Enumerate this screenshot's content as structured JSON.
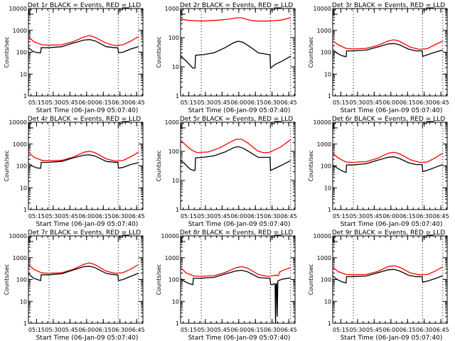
{
  "chart_data": [
    {
      "type": "line",
      "title": "Det 1r BLACK = Events, RED = LLD",
      "ylabel": "Counts/sec",
      "xlabel": "Start Time (06-Jan-09 05:07:40)",
      "yscale": "log",
      "ylim": [
        1,
        10000
      ],
      "yticks": [
        "1",
        "10",
        "100",
        "1000",
        "10000"
      ],
      "xticks": [
        "05:15",
        "05:30",
        "05:45",
        "06:00",
        "06:15",
        "06:30",
        "06:45"
      ],
      "xlim_minutes": [
        0,
        103
      ],
      "vlines_minutes": [
        18.6,
        80.8,
        99
      ],
      "series": [
        {
          "name": "LLD",
          "color": "#ff0000",
          "x": [
            0,
            5,
            12,
            18,
            30,
            40,
            50,
            55,
            60,
            70,
            78,
            85,
            92,
            99
          ],
          "y": [
            500,
            300,
            220,
            210,
            220,
            300,
            500,
            580,
            480,
            260,
            200,
            220,
            320,
            520
          ]
        },
        {
          "name": "Events",
          "color": "#000000",
          "x": [
            0,
            4,
            8,
            11,
            11.5,
            18,
            30,
            40,
            50,
            55,
            60,
            70,
            78,
            80.5,
            81,
            85,
            92,
            99
          ],
          "y": [
            160,
            110,
            95,
            95,
            160,
            160,
            180,
            260,
            360,
            380,
            330,
            180,
            160,
            160,
            95,
            100,
            140,
            180
          ]
        }
      ]
    },
    {
      "type": "line",
      "title": "Det 2r BLACK = Events, RED = LLD",
      "ylabel": "Counts/sec",
      "xlabel": "Start Time (06-Jan-09 05:07:40)",
      "yscale": "log",
      "ylim": [
        1,
        1000
      ],
      "yticks": [
        "1",
        "10",
        "100",
        "1000"
      ],
      "xticks": [
        "05:15",
        "05:30",
        "05:45",
        "06:00",
        "06:15",
        "06:30",
        "06:45"
      ],
      "xlim_minutes": [
        0,
        103
      ],
      "vlines_minutes": [
        18.6,
        80.8,
        99
      ],
      "series": [
        {
          "name": "LLD",
          "color": "#ff0000",
          "x": [
            0,
            5,
            12,
            20,
            35,
            45,
            50,
            55,
            60,
            65,
            70,
            80,
            90,
            99
          ],
          "y": [
            450,
            400,
            380,
            370,
            400,
            440,
            480,
            480,
            420,
            380,
            370,
            370,
            400,
            480
          ]
        },
        {
          "name": "Events",
          "color": "#000000",
          "x": [
            0,
            2,
            5,
            8,
            11,
            13,
            13.5,
            20,
            30,
            40,
            48,
            52,
            56,
            62,
            70,
            80,
            80.5,
            81,
            85,
            92,
            99
          ],
          "y": [
            25,
            20,
            16,
            12,
            9,
            9,
            25,
            26,
            30,
            45,
            68,
            75,
            70,
            50,
            30,
            26,
            26,
            9,
            12,
            16,
            23
          ]
        }
      ]
    },
    {
      "type": "line",
      "title": "Det 3r BLACK = Events, RED = LLD",
      "ylabel": "Counts/sec",
      "xlabel": "Start Time (06-Jan-09 05:07:40)",
      "yscale": "log",
      "ylim": [
        1,
        10000
      ],
      "yticks": [
        "1",
        "10",
        "100",
        "1000",
        "10000"
      ],
      "xticks": [
        "05:15",
        "05:30",
        "05:45",
        "06:00",
        "06:15",
        "06:30",
        "06:45"
      ],
      "xlim_minutes": [
        0,
        103
      ],
      "vlines_minutes": [
        18.6,
        80.8,
        99
      ],
      "series": [
        {
          "name": "LLD",
          "color": "#ff0000",
          "x": [
            0,
            5,
            12,
            18,
            30,
            40,
            50,
            55,
            60,
            70,
            78,
            85,
            92,
            99
          ],
          "y": [
            330,
            220,
            150,
            140,
            150,
            200,
            330,
            370,
            320,
            170,
            135,
            145,
            220,
            320
          ]
        },
        {
          "name": "Events",
          "color": "#000000",
          "x": [
            0,
            4,
            8,
            12,
            12.5,
            18,
            30,
            40,
            50,
            55,
            60,
            68,
            75,
            80.5,
            81,
            85,
            92,
            99
          ],
          "y": [
            130,
            90,
            70,
            62,
            115,
            115,
            125,
            170,
            240,
            250,
            220,
            140,
            115,
            115,
            65,
            75,
            100,
            125
          ]
        }
      ]
    },
    {
      "type": "line",
      "title": "Det 4r BLACK = Events, RED = LLD",
      "ylabel": "Counts/sec",
      "xlabel": "Start Time (06-Jan-09 05:07:40)",
      "yscale": "log",
      "ylim": [
        1,
        10000
      ],
      "yticks": [
        "1",
        "10",
        "100",
        "1000",
        "10000"
      ],
      "xticks": [
        "05:15",
        "05:30",
        "05:45",
        "06:00",
        "06:15",
        "06:30",
        "06:45"
      ],
      "xlim_minutes": [
        0,
        103
      ],
      "vlines_minutes": [
        18.6,
        80.8,
        99
      ],
      "series": [
        {
          "name": "LLD",
          "color": "#ff0000",
          "x": [
            0,
            5,
            12,
            18,
            30,
            40,
            50,
            55,
            60,
            70,
            78,
            85,
            92,
            99
          ],
          "y": [
            420,
            250,
            180,
            170,
            180,
            250,
            420,
            470,
            400,
            210,
            165,
            175,
            260,
            420
          ]
        },
        {
          "name": "Events",
          "color": "#000000",
          "x": [
            0,
            4,
            8,
            11,
            11.5,
            18,
            30,
            40,
            50,
            55,
            60,
            70,
            78,
            80.5,
            81,
            85,
            92,
            99
          ],
          "y": [
            130,
            95,
            80,
            78,
            145,
            145,
            160,
            230,
            310,
            320,
            280,
            160,
            145,
            145,
            78,
            85,
            115,
            140
          ]
        }
      ]
    },
    {
      "type": "line",
      "title": "Det 5r BLACK = Events, RED = LLD",
      "ylabel": "Counts/sec",
      "xlabel": "Start Time (06-Jan-09 05:07:40)",
      "yscale": "log",
      "ylim": [
        1,
        1000
      ],
      "yticks": [
        "1",
        "10",
        "100",
        "1000"
      ],
      "xticks": [
        "05:15",
        "05:30",
        "05:45",
        "06:00",
        "06:15",
        "06:30",
        "06:45"
      ],
      "xlim_minutes": [
        0,
        103
      ],
      "vlines_minutes": [
        18.6,
        80.8,
        99
      ],
      "series": [
        {
          "name": "LLD",
          "color": "#ff0000",
          "x": [
            0,
            5,
            10,
            15,
            25,
            35,
            45,
            50,
            55,
            60,
            65,
            70,
            75,
            80,
            90,
            99
          ],
          "y": [
            240,
            160,
            110,
            90,
            95,
            130,
            210,
            260,
            260,
            200,
            140,
            100,
            90,
            92,
            140,
            250
          ]
        },
        {
          "name": "Events",
          "color": "#000000",
          "x": [
            0,
            3,
            6,
            9,
            12,
            13,
            13.5,
            20,
            30,
            40,
            48,
            52,
            56,
            62,
            70,
            80,
            80.5,
            81,
            85,
            92,
            99
          ],
          "y": [
            48,
            40,
            30,
            24,
            22,
            22,
            60,
            62,
            70,
            95,
            135,
            145,
            130,
            95,
            62,
            62,
            62,
            22,
            26,
            35,
            48
          ]
        }
      ]
    },
    {
      "type": "line",
      "title": "Det 6r BLACK = Events, RED = LLD",
      "ylabel": "Counts/sec",
      "xlabel": "Start Time (06-Jan-09 05:07:40)",
      "yscale": "log",
      "ylim": [
        1,
        10000
      ],
      "yticks": [
        "1",
        "10",
        "100",
        "1000",
        "10000"
      ],
      "xticks": [
        "05:15",
        "05:30",
        "05:45",
        "06:00",
        "06:15",
        "06:30",
        "06:45"
      ],
      "xlim_minutes": [
        0,
        103
      ],
      "vlines_minutes": [
        18.6,
        80.8,
        99
      ],
      "series": [
        {
          "name": "LLD",
          "color": "#ff0000",
          "x": [
            0,
            5,
            12,
            18,
            30,
            40,
            50,
            55,
            60,
            70,
            78,
            85,
            92,
            99
          ],
          "y": [
            380,
            230,
            150,
            145,
            155,
            220,
            380,
            420,
            360,
            190,
            145,
            150,
            230,
            380
          ]
        },
        {
          "name": "Events",
          "color": "#000000",
          "x": [
            0,
            4,
            8,
            12,
            12.5,
            18,
            30,
            40,
            50,
            55,
            60,
            68,
            75,
            80.5,
            81,
            85,
            92,
            99
          ],
          "y": [
            110,
            80,
            60,
            50,
            110,
            110,
            125,
            180,
            250,
            260,
            220,
            140,
            115,
            115,
            55,
            62,
            85,
            115
          ]
        }
      ]
    },
    {
      "type": "line",
      "title": "Det 7r BLACK = Events, RED = LLD",
      "ylabel": "Counts/sec",
      "xlabel": "Start Time (06-Jan-09 05:07:40)",
      "yscale": "log",
      "ylim": [
        1,
        10000
      ],
      "yticks": [
        "1",
        "10",
        "100",
        "1000",
        "10000"
      ],
      "xticks": [
        "05:15",
        "05:30",
        "05:45",
        "06:00",
        "06:15",
        "06:30",
        "06:45"
      ],
      "xlim_minutes": [
        0,
        103
      ],
      "vlines_minutes": [
        18.6,
        80.8,
        99
      ],
      "series": [
        {
          "name": "LLD",
          "color": "#ff0000",
          "x": [
            0,
            5,
            12,
            18,
            30,
            40,
            50,
            55,
            60,
            70,
            78,
            85,
            92,
            99
          ],
          "y": [
            480,
            290,
            200,
            195,
            205,
            290,
            500,
            580,
            480,
            240,
            195,
            205,
            300,
            480
          ]
        },
        {
          "name": "Events",
          "color": "#000000",
          "x": [
            0,
            4,
            8,
            11,
            11.5,
            18,
            30,
            40,
            50,
            55,
            60,
            70,
            78,
            80.5,
            81,
            85,
            92,
            99
          ],
          "y": [
            190,
            120,
            100,
            90,
            165,
            165,
            185,
            270,
            390,
            410,
            350,
            190,
            165,
            165,
            90,
            100,
            140,
            195
          ]
        }
      ]
    },
    {
      "type": "line",
      "title": "Det 8r BLACK = Events, RED = LLD",
      "ylabel": "Counts/sec",
      "xlabel": "Start Time (06-Jan-09 05:07:40)",
      "yscale": "log",
      "ylim": [
        1,
        10000
      ],
      "yticks": [
        "1",
        "10",
        "100",
        "1000",
        "10000"
      ],
      "xticks": [
        "05:15",
        "05:30",
        "05:45",
        "06:00",
        "06:15",
        "06:30",
        "06:45"
      ],
      "xlim_minutes": [
        0,
        103
      ],
      "vlines_minutes": [
        18.6,
        80.8,
        99
      ],
      "series": [
        {
          "name": "LLD",
          "color": "#ff0000",
          "x": [
            0,
            5,
            12,
            18,
            30,
            40,
            50,
            55,
            60,
            70,
            78,
            82,
            86,
            88,
            89,
            92,
            99
          ],
          "y": [
            350,
            200,
            145,
            140,
            150,
            210,
            350,
            390,
            340,
            170,
            140,
            145,
            160,
            150,
            220,
            260,
            350
          ]
        },
        {
          "name": "Events",
          "color": "#000000",
          "x": [
            0,
            4,
            8,
            11,
            11.5,
            18,
            30,
            40,
            50,
            55,
            60,
            70,
            78,
            80.5,
            81,
            83,
            84,
            85,
            85.5,
            86,
            86.5,
            87,
            87.5,
            88,
            92,
            99
          ],
          "y": [
            110,
            80,
            65,
            58,
            115,
            115,
            125,
            180,
            250,
            265,
            230,
            125,
            115,
            115,
            60,
            58,
            65,
            62,
            1,
            62,
            65,
            2,
            85,
            90,
            105,
            120
          ]
        }
      ]
    },
    {
      "type": "line",
      "title": "Det 9r BLACK = Events, RED = LLD",
      "ylabel": "Counts/sec",
      "xlabel": "Start Time (06-Jan-09 05:07:40)",
      "yscale": "log",
      "ylim": [
        1,
        10000
      ],
      "yticks": [
        "1",
        "10",
        "100",
        "1000",
        "10000"
      ],
      "xticks": [
        "05:15",
        "05:30",
        "05:45",
        "06:00",
        "06:15",
        "06:30",
        "06:45"
      ],
      "xlim_minutes": [
        0,
        103
      ],
      "vlines_minutes": [
        18.6,
        80.8,
        99
      ],
      "series": [
        {
          "name": "LLD",
          "color": "#ff0000",
          "x": [
            0,
            5,
            12,
            18,
            30,
            40,
            50,
            55,
            60,
            70,
            78,
            85,
            92,
            99
          ],
          "y": [
            360,
            230,
            170,
            165,
            170,
            230,
            390,
            430,
            370,
            200,
            165,
            170,
            240,
            380
          ]
        },
        {
          "name": "Events",
          "color": "#000000",
          "x": [
            0,
            4,
            8,
            12,
            12.5,
            18,
            30,
            40,
            50,
            55,
            60,
            68,
            75,
            80.5,
            81,
            85,
            92,
            99
          ],
          "y": [
            145,
            100,
            80,
            70,
            135,
            135,
            145,
            200,
            280,
            290,
            250,
            160,
            135,
            135,
            75,
            85,
            110,
            150
          ]
        }
      ]
    }
  ]
}
